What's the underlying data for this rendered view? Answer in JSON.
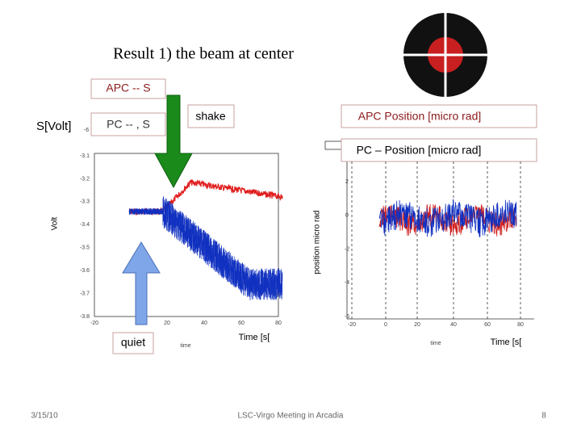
{
  "title": "Result 1) the beam at center",
  "labels": {
    "apc_s": "APC -- S",
    "s_volt": "S[Volt]",
    "pc_s": "PC -- , S",
    "shake": "shake",
    "apc_position": "APC  Position [micro rad]",
    "pc_position": "PC – Position [micro rad]",
    "quiet": "quiet"
  },
  "left_plot": {
    "y_label": "Volt",
    "x_label": "time",
    "time_label": "Time [s[",
    "corner": "-6",
    "yticks": [
      "-3.1",
      "-3.2",
      "-3.3",
      "-3.4",
      "-3.5",
      "-3.6",
      "-3.7",
      "-3.8"
    ],
    "xticks": [
      "-20",
      "20",
      "40",
      "60",
      "80"
    ]
  },
  "right_plot": {
    "y_label": "position micro rad",
    "x_label": "time",
    "time_label": "Time [s[",
    "yticks": [
      "2",
      "0",
      "-2",
      "-4",
      "-6"
    ],
    "xticks": [
      "-20",
      "0",
      "20",
      "40",
      "60",
      "80"
    ]
  },
  "footer": {
    "date": "3/15/10",
    "meeting": "LSC-Virgo Meeting in Arcadia",
    "page": "8"
  }
}
